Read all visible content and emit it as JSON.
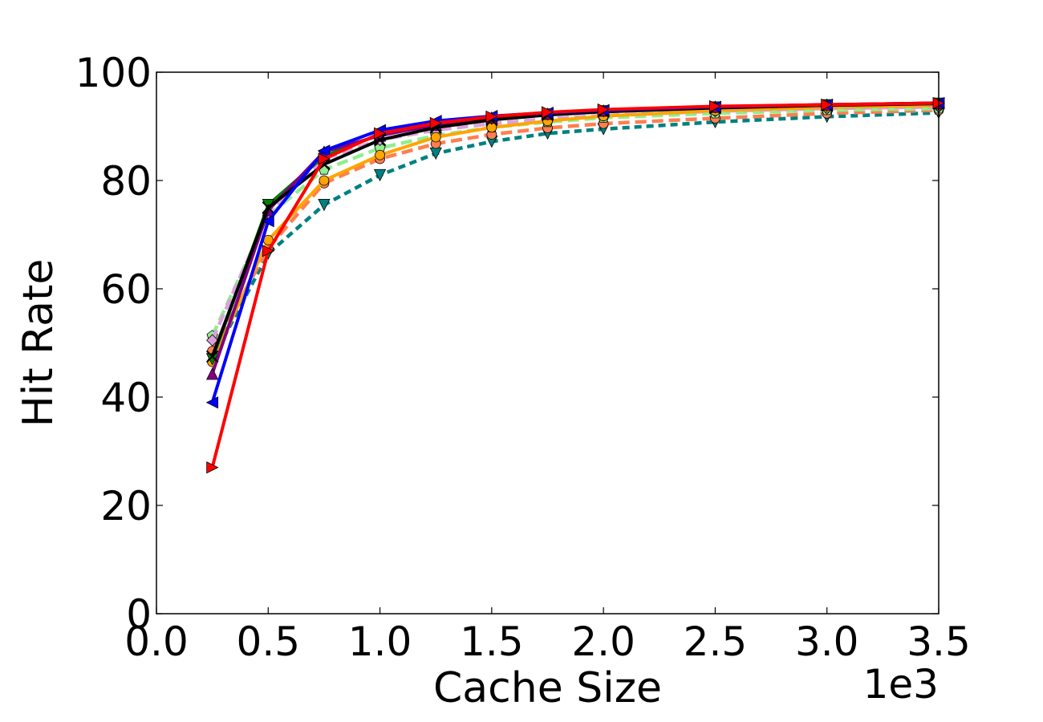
{
  "chart_data": {
    "type": "line",
    "xlabel": "Cache Size",
    "ylabel": "Hit Rate",
    "x_offset_label": "1e3",
    "xlim": [
      0.0,
      3.5
    ],
    "ylim": [
      0,
      100
    ],
    "x_ticks": [
      "0.0",
      "0.5",
      "1.0",
      "1.5",
      "2.0",
      "2.5",
      "3.0",
      "3.5"
    ],
    "y_ticks": [
      "0",
      "20",
      "40",
      "60",
      "80",
      "100"
    ],
    "grid": false,
    "legend": "none",
    "x": [
      0.25,
      0.5,
      0.75,
      1.0,
      1.25,
      1.5,
      1.75,
      2.0,
      2.5,
      3.0,
      3.5
    ],
    "series": [
      {
        "color": "#008080",
        "dash": "dotted",
        "marker": "tri_down",
        "values": [
          47,
          66.5,
          75.5,
          81,
          85,
          87.2,
          88.7,
          89.5,
          90.8,
          91.8,
          92.5
        ]
      },
      {
        "color": "#ff7f50",
        "dash": "dashed",
        "marker": "circle",
        "values": [
          48.5,
          67.5,
          79.5,
          84,
          86.8,
          88.5,
          89.7,
          90.5,
          91.5,
          92.4,
          93.0
        ]
      },
      {
        "color": "#90ee90",
        "dash": "dashed",
        "marker": "pentagon",
        "values": [
          51.3,
          73.5,
          82,
          86,
          88.3,
          89.8,
          90.8,
          91.6,
          92.4,
          93.0,
          93.3
        ]
      },
      {
        "color": "#dda0dd",
        "dash": "dashed",
        "marker": "diamond",
        "values": [
          50.5,
          74,
          84,
          87.5,
          89.3,
          90.5,
          91.4,
          92.0,
          92.8,
          93.3,
          93.6
        ]
      },
      {
        "color": "#ffa500",
        "dash": "solid",
        "marker": "circle",
        "values": [
          46.5,
          69,
          80,
          84.7,
          88,
          89.8,
          91,
          91.9,
          92.9,
          93.5,
          93.9
        ]
      },
      {
        "color": "#008000",
        "dash": "solid",
        "marker": "tri_down",
        "values": [
          47,
          75.5,
          84.5,
          88.5,
          90.3,
          91.4,
          92.2,
          92.8,
          93.5,
          93.9,
          94.2
        ]
      },
      {
        "color": "#800080",
        "dash": "solid",
        "marker": "tri_up",
        "values": [
          44.3,
          74.5,
          85.3,
          88.3,
          90.3,
          91.6,
          92.3,
          92.9,
          93.6,
          94.0,
          94.3
        ]
      },
      {
        "color": "#000000",
        "dash": "solid",
        "marker": "x",
        "values": [
          47.5,
          75,
          83,
          87.5,
          89.8,
          91.2,
          92.1,
          92.7,
          93.4,
          93.9,
          94.2
        ]
      },
      {
        "color": "#0000ff",
        "dash": "solid",
        "marker": "tri_left",
        "values": [
          39,
          72.5,
          85.5,
          89.3,
          91,
          91.9,
          92.5,
          93.0,
          93.6,
          94.0,
          94.3
        ]
      },
      {
        "color": "#ff0000",
        "dash": "solid",
        "marker": "tri_right",
        "values": [
          27,
          67,
          84,
          88.7,
          90.6,
          91.8,
          92.6,
          93.1,
          93.7,
          94.0,
          94.3
        ]
      }
    ]
  }
}
